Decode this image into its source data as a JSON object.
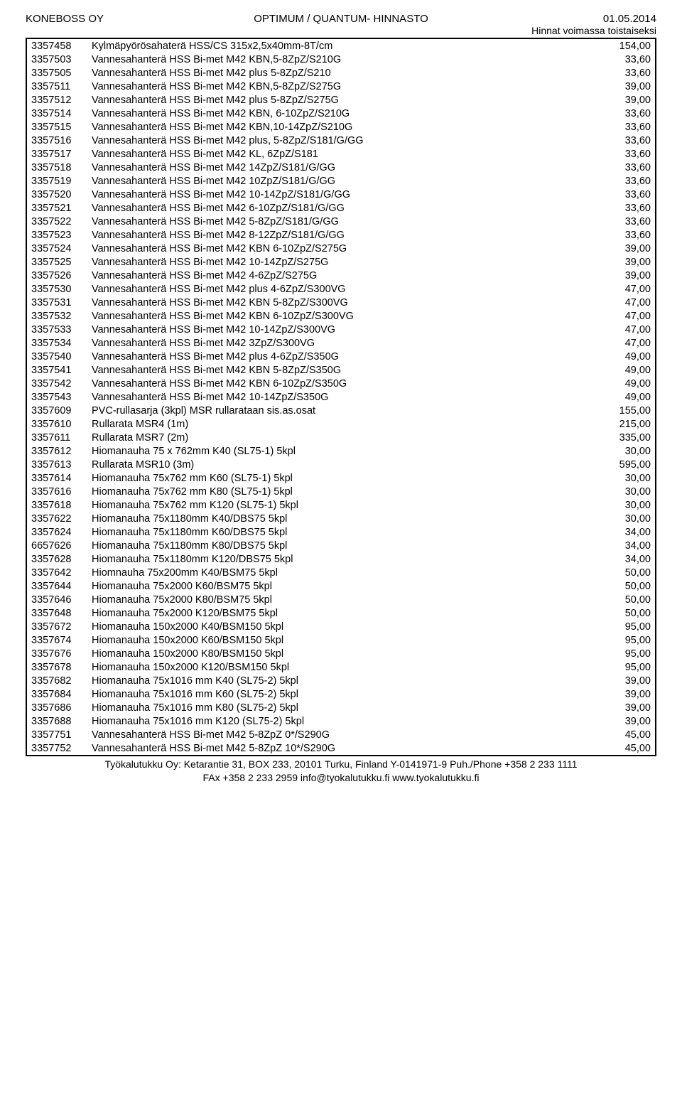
{
  "header": {
    "left": "KONEBOSS OY",
    "center": "OPTIMUM / QUANTUM- HINNASTO",
    "right_date": "01.05.2014",
    "right_note": "Hinnat voimassa toistaiseksi"
  },
  "footer": {
    "line1": "Työkalutukku Oy: Ketarantie 31, BOX 233, 20101 Turku, Finland Y-0141971-9 Puh./Phone +358 2 233 1111",
    "line2": "FAx +358 2 233 2959 info@tyokalutukku.fi www.tyokalutukku.fi"
  },
  "rows": [
    {
      "code": "3357458",
      "desc": "Kylmäpyörösahaterä HSS/CS 315x2,5x40mm-8T/cm",
      "price": "154,00"
    },
    {
      "code": "3357503",
      "desc": "Vannesahanterä HSS Bi-met M42 KBN,5-8ZpZ/S210G",
      "price": "33,60"
    },
    {
      "code": "3357505",
      "desc": "Vannesahanterä HSS Bi-met M42 plus 5-8ZpZ/S210",
      "price": "33,60"
    },
    {
      "code": "3357511",
      "desc": "Vannesahanterä HSS Bi-met M42 KBN,5-8ZpZ/S275G",
      "price": "39,00"
    },
    {
      "code": "3357512",
      "desc": "Vannesahanterä HSS Bi-met M42 plus 5-8ZpZ/S275G",
      "price": "39,00"
    },
    {
      "code": "3357514",
      "desc": "Vannesahanterä HSS Bi-met M42 KBN, 6-10ZpZ/S210G",
      "price": "33,60"
    },
    {
      "code": "3357515",
      "desc": "Vannesahanterä HSS Bi-met M42 KBN,10-14ZpZ/S210G",
      "price": "33,60"
    },
    {
      "code": "3357516",
      "desc": "Vannesahanterä HSS Bi-met M42 plus, 5-8ZpZ/S181/G/GG",
      "price": "33,60"
    },
    {
      "code": "3357517",
      "desc": "Vannesahanterä HSS Bi-met M42 KL, 6ZpZ/S181",
      "price": "33,60"
    },
    {
      "code": "3357518",
      "desc": "Vannesahanterä HSS Bi-met M42 14ZpZ/S181/G/GG",
      "price": "33,60"
    },
    {
      "code": "3357519",
      "desc": "Vannesahanterä HSS Bi-met M42 10ZpZ/S181/G/GG",
      "price": "33,60"
    },
    {
      "code": "3357520",
      "desc": "Vannesahanterä HSS Bi-met M42 10-14ZpZ/S181/G/GG",
      "price": "33,60"
    },
    {
      "code": "3357521",
      "desc": "Vannesahanterä HSS Bi-met M42 6-10ZpZ/S181/G/GG",
      "price": "33,60"
    },
    {
      "code": "3357522",
      "desc": "Vannesahanterä HSS Bi-met M42 5-8ZpZ/S181/G/GG",
      "price": "33,60"
    },
    {
      "code": "3357523",
      "desc": "Vannesahanterä HSS Bi-met M42 8-12ZpZ/S181/G/GG",
      "price": "33,60"
    },
    {
      "code": "3357524",
      "desc": "Vannesahanterä HSS Bi-met M42 KBN 6-10ZpZ/S275G",
      "price": "39,00"
    },
    {
      "code": "3357525",
      "desc": "Vannesahanterä HSS Bi-met M42 10-14ZpZ/S275G",
      "price": "39,00"
    },
    {
      "code": "3357526",
      "desc": "Vannesahanterä HSS Bi-met M42 4-6ZpZ/S275G",
      "price": "39,00"
    },
    {
      "code": "3357530",
      "desc": "Vannesahanterä HSS Bi-met M42 plus 4-6ZpZ/S300VG",
      "price": "47,00"
    },
    {
      "code": "3357531",
      "desc": "Vannesahanterä HSS Bi-met M42 KBN 5-8ZpZ/S300VG",
      "price": "47,00"
    },
    {
      "code": "3357532",
      "desc": "Vannesahanterä HSS Bi-met M42 KBN 6-10ZpZ/S300VG",
      "price": "47,00"
    },
    {
      "code": "3357533",
      "desc": "Vannesahanterä HSS Bi-met M42 10-14ZpZ/S300VG",
      "price": "47,00"
    },
    {
      "code": "3357534",
      "desc": "Vannesahanterä HSS Bi-met M42 3ZpZ/S300VG",
      "price": "47,00"
    },
    {
      "code": "3357540",
      "desc": "Vannesahanterä HSS Bi-met M42 plus 4-6ZpZ/S350G",
      "price": "49,00"
    },
    {
      "code": "3357541",
      "desc": "Vannesahanterä HSS Bi-met M42 KBN 5-8ZpZ/S350G",
      "price": "49,00"
    },
    {
      "code": "3357542",
      "desc": "Vannesahanterä HSS Bi-met M42 KBN 6-10ZpZ/S350G",
      "price": "49,00"
    },
    {
      "code": "3357543",
      "desc": "Vannesahanterä HSS Bi-met M42 10-14ZpZ/S350G",
      "price": "49,00"
    },
    {
      "code": "3357609",
      "desc": "PVC-rullasarja (3kpl) MSR rullarataan sis.as.osat",
      "price": "155,00"
    },
    {
      "code": "3357610",
      "desc": "Rullarata MSR4 (1m)",
      "price": "215,00"
    },
    {
      "code": "3357611",
      "desc": "Rullarata MSR7 (2m)",
      "price": "335,00"
    },
    {
      "code": "3357612",
      "desc": "Hiomanauha 75 x 762mm K40 (SL75-1) 5kpl",
      "price": "30,00"
    },
    {
      "code": "3357613",
      "desc": "Rullarata MSR10 (3m)",
      "price": "595,00"
    },
    {
      "code": "3357614",
      "desc": "Hiomanauha 75x762 mm K60 (SL75-1) 5kpl",
      "price": "30,00"
    },
    {
      "code": "3357616",
      "desc": "Hiomanauha 75x762 mm K80 (SL75-1) 5kpl",
      "price": "30,00"
    },
    {
      "code": "3357618",
      "desc": "Hiomanauha 75x762 mm K120 (SL75-1) 5kpl",
      "price": "30,00"
    },
    {
      "code": "3357622",
      "desc": "Hiomanauha 75x1180mm K40/DBS75 5kpl",
      "price": "30,00"
    },
    {
      "code": "3357624",
      "desc": "Hiomanauha 75x1180mm K60/DBS75 5kpl",
      "price": "34,00"
    },
    {
      "code": "6657626",
      "desc": "Hiomanauha 75x1180mm K80/DBS75 5kpl",
      "price": "34,00"
    },
    {
      "code": "3357628",
      "desc": "Hiomanauha 75x1180mm K120/DBS75 5kpl",
      "price": "34,00"
    },
    {
      "code": "3357642",
      "desc": "Hiomnauha 75x200mm K40/BSM75 5kpl",
      "price": "50,00"
    },
    {
      "code": "3357644",
      "desc": "Hiomanauha 75x2000 K60/BSM75 5kpl",
      "price": "50,00"
    },
    {
      "code": "3357646",
      "desc": "Hiomanauha 75x2000 K80/BSM75 5kpl",
      "price": "50,00"
    },
    {
      "code": "3357648",
      "desc": "Hiomanauha 75x2000 K120/BSM75 5kpl",
      "price": "50,00"
    },
    {
      "code": "3357672",
      "desc": "Hiomanauha 150x2000 K40/BSM150 5kpl",
      "price": "95,00"
    },
    {
      "code": "3357674",
      "desc": "Hiomanauha 150x2000 K60/BSM150 5kpl",
      "price": "95,00"
    },
    {
      "code": "3357676",
      "desc": "Hiomanauha 150x2000 K80/BSM150 5kpl",
      "price": "95,00"
    },
    {
      "code": "3357678",
      "desc": "Hiomanauha 150x2000 K120/BSM150 5kpl",
      "price": "95,00"
    },
    {
      "code": "3357682",
      "desc": "Hiomanauha 75x1016 mm K40 (SL75-2) 5kpl",
      "price": "39,00"
    },
    {
      "code": "3357684",
      "desc": "Hiomanauha 75x1016 mm K60 (SL75-2) 5kpl",
      "price": "39,00"
    },
    {
      "code": "3357686",
      "desc": "Hiomanauha 75x1016 mm K80 (SL75-2) 5kpl",
      "price": "39,00"
    },
    {
      "code": "3357688",
      "desc": "Hiomanauha 75x1016 mm K120 (SL75-2) 5kpl",
      "price": "39,00"
    },
    {
      "code": "3357751",
      "desc": "Vannesahanterä HSS Bi-met M42 5-8ZpZ 0*/S290G",
      "price": "45,00"
    },
    {
      "code": "3357752",
      "desc": "Vannesahanterä HSS Bi-met M42 5-8ZpZ 10*/S290G",
      "price": "45,00"
    }
  ]
}
